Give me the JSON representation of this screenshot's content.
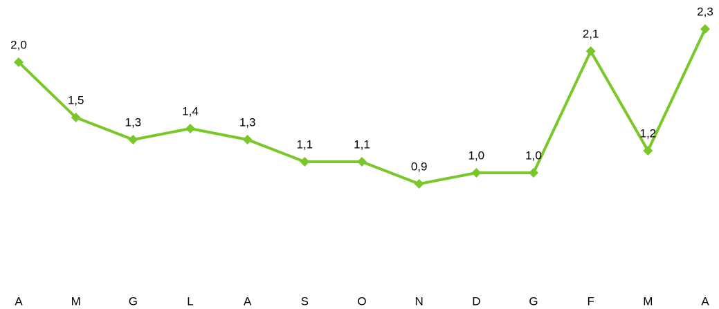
{
  "chart_data": {
    "type": "line",
    "categories": [
      "A",
      "M",
      "G",
      "L",
      "A",
      "S",
      "O",
      "N",
      "D",
      "G",
      "F",
      "M",
      "A"
    ],
    "values": [
      2.0,
      1.5,
      1.3,
      1.4,
      1.3,
      1.1,
      1.1,
      0.9,
      1.0,
      1.0,
      2.1,
      1.2,
      2.3
    ],
    "value_labels": [
      "2,0",
      "1,5",
      "1,3",
      "1,4",
      "1,3",
      "1,1",
      "1,1",
      "0,9",
      "1,0",
      "1,0",
      "2,1",
      "1,2",
      "2,3"
    ],
    "color": "#7ac72a",
    "ylim": [
      0,
      2.5
    ]
  }
}
